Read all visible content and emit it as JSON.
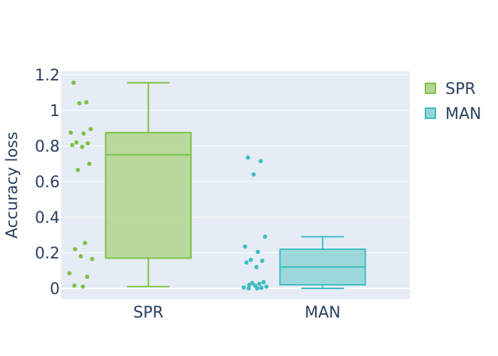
{
  "chart_data": {
    "type": "box",
    "title": "",
    "xlabel": "",
    "ylabel": "Accuracy loss",
    "ylim": [
      -0.06,
      1.22
    ],
    "yticks": [
      0,
      0.2,
      0.4,
      0.6,
      0.8,
      1,
      1.2
    ],
    "ytick_labels": [
      "0",
      "0.2",
      "0.4",
      "0.6",
      "0.8",
      "1",
      "1.2"
    ],
    "categories": [
      "SPR",
      "MAN"
    ],
    "grid": true,
    "legend_position": "top-right",
    "series": [
      {
        "name": "SPR",
        "color": "#7dc142",
        "fill": "#b3d693",
        "lower_fence": 0.01,
        "q1": 0.17,
        "median": 0.75,
        "q3": 0.875,
        "upper_fence": 1.155,
        "points": [
          1.155,
          1.045,
          1.04,
          0.895,
          0.875,
          0.87,
          0.82,
          0.815,
          0.805,
          0.795,
          0.7,
          0.665,
          0.255,
          0.22,
          0.18,
          0.165,
          0.085,
          0.065,
          0.015,
          0.01
        ]
      },
      {
        "name": "MAN",
        "color": "#3dbcc0",
        "fill": "#94d5d8",
        "lower_fence": 0.0,
        "q1": 0.02,
        "median": 0.12,
        "q3": 0.22,
        "upper_fence": 0.29,
        "points": [
          0.735,
          0.715,
          0.64,
          0.29,
          0.235,
          0.205,
          0.16,
          0.155,
          0.145,
          0.12,
          0.035,
          0.03,
          0.025,
          0.02,
          0.015,
          0.01,
          0.005,
          0.003,
          0.0,
          0.0
        ]
      }
    ]
  }
}
